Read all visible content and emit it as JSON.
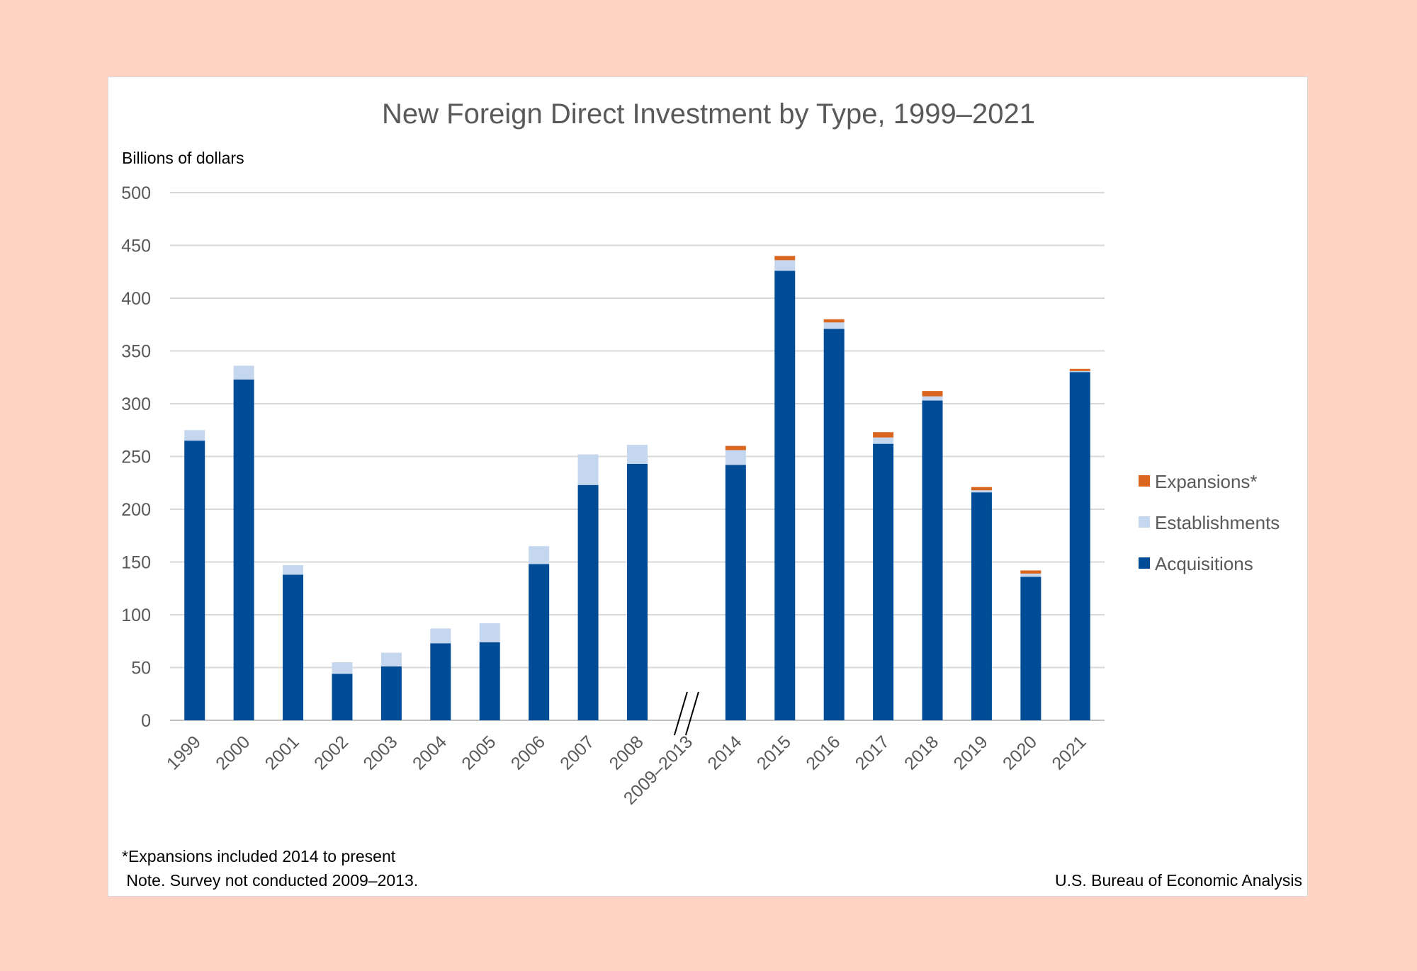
{
  "chart_data": {
    "type": "bar",
    "stacked": true,
    "title": "New Foreign Direct Investment by Type, 1999–2021",
    "ylabel": "Billions of dollars",
    "xlabel": "",
    "ylim": [
      0,
      500
    ],
    "yticks": [
      0,
      50,
      100,
      150,
      200,
      250,
      300,
      350,
      400,
      450,
      500
    ],
    "grid": true,
    "legend_position": "right",
    "categories": [
      "1999",
      "2000",
      "2001",
      "2002",
      "2003",
      "2004",
      "2005",
      "2006",
      "2007",
      "2008",
      "2009–2013",
      "2014",
      "2015",
      "2016",
      "2017",
      "2018",
      "2019",
      "2020",
      "2021"
    ],
    "axis_break_category": "2009–2013",
    "series": [
      {
        "name": "Acquisitions",
        "color": "#004C97",
        "values": [
          265,
          323,
          138,
          44,
          51,
          73,
          74,
          148,
          223,
          243,
          null,
          242,
          426,
          371,
          262,
          303,
          216,
          136,
          330
        ]
      },
      {
        "name": "Establishments",
        "color": "#C5D7EF",
        "values": [
          10,
          13,
          9,
          11,
          13,
          14,
          18,
          17,
          29,
          18,
          null,
          14,
          10,
          6,
          6,
          4,
          2,
          3,
          1
        ]
      },
      {
        "name": "Expansions*",
        "color": "#D9651E",
        "values": [
          null,
          null,
          null,
          null,
          null,
          null,
          null,
          null,
          null,
          null,
          null,
          4,
          4,
          3,
          5,
          5,
          3,
          3,
          2
        ]
      }
    ],
    "legend_order": [
      "Expansions*",
      "Establishments",
      "Acquisitions"
    ],
    "notes": [
      "*Expansions included 2014 to present",
      " Note. Survey not conducted 2009–2013."
    ],
    "source": "U.S. Bureau of Economic Analysis"
  }
}
